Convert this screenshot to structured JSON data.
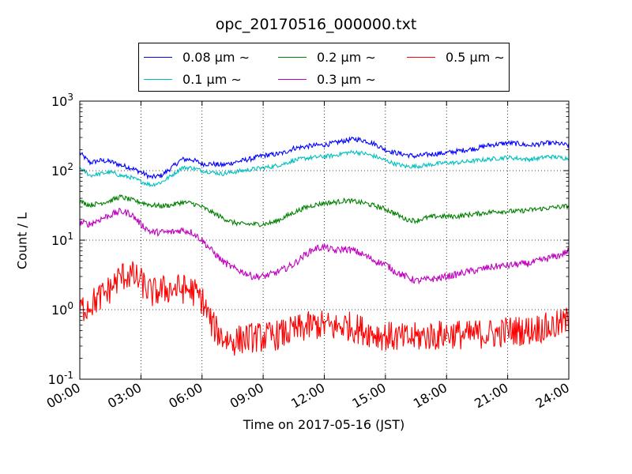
{
  "chart_data": {
    "type": "line",
    "title": "opc_20170516_000000.txt",
    "xlabel": "Time on 2017-05-16 (JST)",
    "ylabel": "Count / L",
    "x_unit": "hours",
    "xlim": [
      0,
      24
    ],
    "ylim": [
      0.1,
      1000
    ],
    "yscale": "log",
    "grid": true,
    "legend_position": "top-center",
    "x_ticks": [
      0,
      3,
      6,
      9,
      12,
      15,
      18,
      21,
      24
    ],
    "x_tick_labels": [
      "00:00",
      "03:00",
      "06:00",
      "09:00",
      "12:00",
      "15:00",
      "18:00",
      "21:00",
      "24:00"
    ],
    "y_ticks": [
      0.1,
      1,
      10,
      100,
      1000
    ],
    "y_tick_labels": [
      {
        "base": "10",
        "exp": "-1"
      },
      {
        "base": "10",
        "exp": "0"
      },
      {
        "base": "10",
        "exp": "1"
      },
      {
        "base": "10",
        "exp": "2"
      },
      {
        "base": "10",
        "exp": "3"
      }
    ],
    "series": [
      {
        "name": "0.08 μm ∼",
        "color": "#0000ff",
        "x": [
          0,
          0.5,
          1,
          1.5,
          2,
          2.5,
          3,
          3.5,
          4,
          4.5,
          5,
          5.5,
          6,
          6.5,
          7,
          7.5,
          8,
          8.5,
          9,
          9.5,
          10,
          10.5,
          11,
          11.5,
          12,
          12.5,
          13,
          13.5,
          14,
          14.5,
          15,
          15.5,
          16,
          16.5,
          17,
          17.5,
          18,
          18.5,
          19,
          19.5,
          20,
          20.5,
          21,
          21.5,
          22,
          22.5,
          23,
          23.5,
          24
        ],
        "y": [
          180,
          130,
          140,
          135,
          120,
          110,
          95,
          80,
          85,
          110,
          145,
          145,
          125,
          125,
          120,
          130,
          140,
          150,
          165,
          170,
          180,
          210,
          220,
          230,
          235,
          250,
          270,
          285,
          270,
          240,
          200,
          180,
          170,
          160,
          170,
          175,
          180,
          190,
          200,
          210,
          230,
          240,
          250,
          245,
          230,
          240,
          250,
          245,
          230
        ]
      },
      {
        "name": "0.1 μm ∼",
        "color": "#00bfbf",
        "x": [
          0,
          0.5,
          1,
          1.5,
          2,
          2.5,
          3,
          3.5,
          4,
          4.5,
          5,
          5.5,
          6,
          6.5,
          7,
          7.5,
          8,
          8.5,
          9,
          9.5,
          10,
          10.5,
          11,
          11.5,
          12,
          12.5,
          13,
          13.5,
          14,
          14.5,
          15,
          15.5,
          16,
          16.5,
          17,
          17.5,
          18,
          18.5,
          19,
          19.5,
          20,
          20.5,
          21,
          21.5,
          22,
          22.5,
          23,
          23.5,
          24
        ],
        "y": [
          110,
          85,
          90,
          95,
          85,
          80,
          70,
          62,
          68,
          85,
          110,
          110,
          100,
          95,
          90,
          95,
          100,
          105,
          110,
          115,
          125,
          140,
          150,
          155,
          160,
          165,
          180,
          185,
          175,
          160,
          140,
          125,
          115,
          115,
          120,
          125,
          130,
          130,
          135,
          140,
          145,
          150,
          155,
          150,
          145,
          150,
          160,
          155,
          150
        ]
      },
      {
        "name": "0.2 μm ∼",
        "color": "#008000",
        "x": [
          0,
          0.5,
          1,
          1.5,
          2,
          2.5,
          3,
          3.5,
          4,
          4.5,
          5,
          5.5,
          6,
          6.5,
          7,
          7.5,
          8,
          8.5,
          9,
          9.5,
          10,
          10.5,
          11,
          11.5,
          12,
          12.5,
          13,
          13.5,
          14,
          14.5,
          15,
          15.5,
          16,
          16.5,
          17,
          17.5,
          18,
          18.5,
          19,
          19.5,
          20,
          20.5,
          21,
          21.5,
          22,
          22.5,
          23,
          23.5,
          24
        ],
        "y": [
          36,
          32,
          34,
          37,
          42,
          38,
          35,
          32,
          31,
          32,
          35,
          34,
          30,
          25,
          21,
          18,
          17,
          17,
          17,
          18,
          21,
          25,
          29,
          32,
          34,
          35,
          37,
          36,
          34,
          31,
          28,
          24,
          20,
          19,
          21,
          22,
          22,
          22,
          23,
          24,
          25,
          26,
          26,
          26,
          27,
          28,
          29,
          30,
          31
        ]
      },
      {
        "name": "0.3 μm ∼",
        "color": "#bf00bf",
        "x": [
          0,
          0.5,
          1,
          1.5,
          2,
          2.5,
          3,
          3.5,
          4,
          4.5,
          5,
          5.5,
          6,
          6.5,
          7,
          7.5,
          8,
          8.5,
          9,
          9.5,
          10,
          10.5,
          11,
          11.5,
          12,
          12.5,
          13,
          13.5,
          14,
          14.5,
          15,
          15.5,
          16,
          16.5,
          17,
          17.5,
          18,
          18.5,
          19,
          19.5,
          20,
          20.5,
          21,
          21.5,
          22,
          22.5,
          23,
          23.5,
          24
        ],
        "y": [
          18,
          17,
          20,
          23,
          26,
          24,
          17,
          13,
          13,
          13,
          14,
          13,
          10,
          7,
          5,
          4,
          3.5,
          3,
          3,
          3.3,
          3.8,
          4.5,
          6,
          7.5,
          8,
          7,
          7.5,
          7,
          6,
          5,
          4.5,
          3.5,
          3,
          2.6,
          2.7,
          2.8,
          3,
          3.2,
          3.5,
          3.7,
          4,
          4.2,
          4.3,
          4.5,
          4.6,
          5,
          5.5,
          6,
          7
        ]
      },
      {
        "name": "0.5 μm ∼",
        "color": "#ff0000",
        "x": [
          0,
          0.5,
          1,
          1.5,
          2,
          2.5,
          3,
          3.5,
          4,
          4.5,
          5,
          5.5,
          6,
          6.5,
          7,
          7.5,
          8,
          8.5,
          9,
          9.5,
          10,
          10.5,
          11,
          11.5,
          12,
          12.5,
          13,
          13.5,
          14,
          14.5,
          15,
          15.5,
          16,
          16.5,
          17,
          17.5,
          18,
          18.5,
          19,
          19.5,
          20,
          20.5,
          21,
          21.5,
          22,
          22.5,
          23,
          23.5,
          24
        ],
        "y": [
          1,
          1.2,
          1.5,
          2,
          3,
          3.2,
          2.5,
          1.7,
          1.9,
          2,
          2,
          1.9,
          1.4,
          0.6,
          0.4,
          0.35,
          0.38,
          0.4,
          0.4,
          0.42,
          0.45,
          0.5,
          0.55,
          0.6,
          0.6,
          0.55,
          0.6,
          0.55,
          0.5,
          0.45,
          0.42,
          0.4,
          0.38,
          0.4,
          0.42,
          0.42,
          0.45,
          0.45,
          0.42,
          0.45,
          0.45,
          0.45,
          0.5,
          0.5,
          0.5,
          0.55,
          0.55,
          0.6,
          0.7
        ]
      }
    ]
  }
}
